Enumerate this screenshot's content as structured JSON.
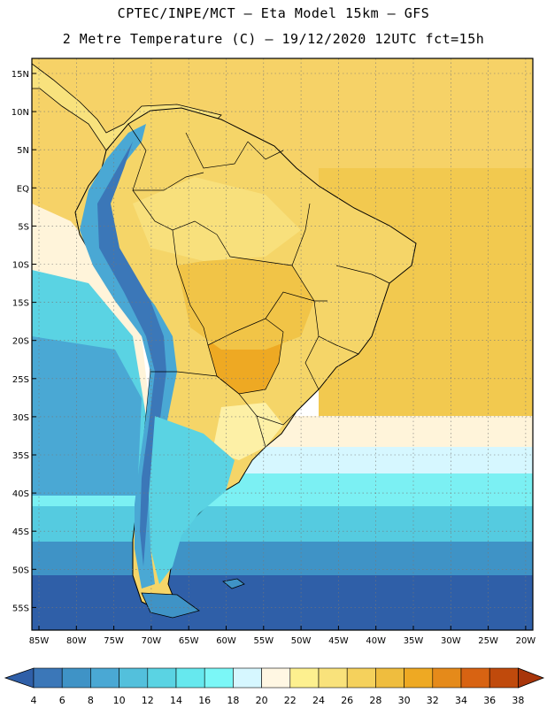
{
  "header": {
    "line1": "CPTEC/INPE/MCT –  Eta Model 15km – GFS",
    "line2": "2 Metre Temperature (C) – 19/12/2020 12UTC fct=15h"
  },
  "map": {
    "lat_labels": [
      "15N",
      "10N",
      "5N",
      "EQ",
      "5S",
      "10S",
      "15S",
      "20S",
      "25S",
      "30S",
      "35S",
      "40S",
      "45S",
      "50S",
      "55S"
    ],
    "lon_labels": [
      "85W",
      "80W",
      "75W",
      "70W",
      "65W",
      "60W",
      "55W",
      "50W",
      "45W",
      "40W",
      "35W",
      "30W",
      "25W",
      "20W"
    ]
  },
  "colorbar": {
    "labels": [
      "4",
      "6",
      "8",
      "10",
      "12",
      "14",
      "16",
      "18",
      "20",
      "22",
      "24",
      "26",
      "28",
      "30",
      "32",
      "34",
      "36",
      "38"
    ],
    "colors": [
      "#2f5fa8",
      "#3b77b8",
      "#3f93c6",
      "#4aa8d4",
      "#53c0dc",
      "#5ad3e3",
      "#66e8ee",
      "#7bf7f7",
      "#d6f7ff",
      "#fff7e3",
      "#fdf08f",
      "#f9e27b",
      "#f5d15c",
      "#efbd3e",
      "#eea923",
      "#e58a1a",
      "#d86312",
      "#c04a0c",
      "#a8350a"
    ]
  }
}
